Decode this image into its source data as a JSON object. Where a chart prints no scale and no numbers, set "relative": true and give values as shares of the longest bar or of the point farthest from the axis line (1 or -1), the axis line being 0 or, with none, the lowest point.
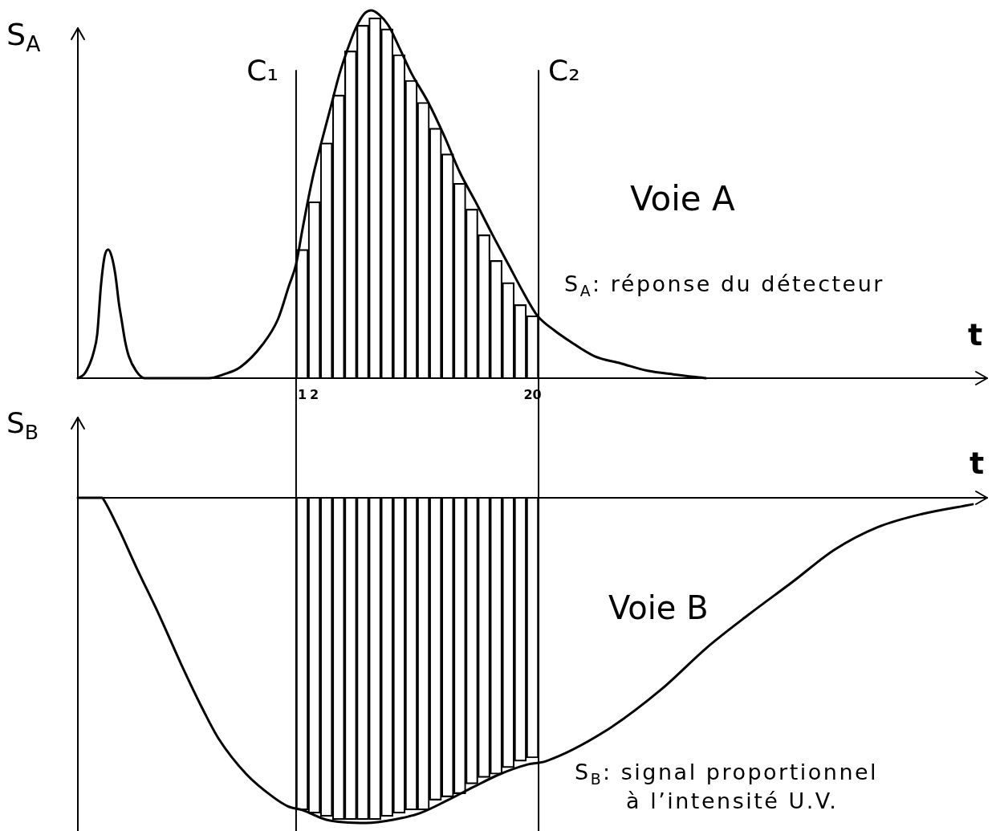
{
  "chart_data": [
    {
      "type": "line",
      "relative": true,
      "ylabel": "S$_{A}$",
      "xlabel": "t",
      "xlim": [
        -17.5,
        57.5
      ],
      "xticks": [
        1,
        2,
        20
      ],
      "tick_labels": "x",
      "line_style": "solid",
      "ref_lines": [
        {
          "axis": "x",
          "value": 0.5,
          "label": "C₁"
        },
        {
          "axis": "x",
          "value": 20.5,
          "label": "C₂"
        }
      ],
      "annotations": [
        "Voie A",
        "S$_{A}$: réponse du détecteur"
      ],
      "series": [
        {
          "color": "#000000",
          "x": [
            -17.5,
            -17.0,
            -16.5,
            -16.2,
            -15.9,
            -15.6,
            -15.3,
            -15.0,
            -14.7,
            -14.4,
            -14.1,
            -13.9,
            -13.6,
            -13.3,
            -12.7,
            -12.0,
            -6.7,
            -5.5,
            -4.1,
            -2.3,
            -1.0,
            -0.1,
            0.5,
            1.0,
            1.4,
            1.9,
            2.5,
            3.3,
            4.1,
            4.7,
            5.4,
            6.1,
            6.7,
            7.3,
            8.1,
            9.0,
            10.0,
            11.4,
            12.7,
            14.0,
            15.3,
            16.7,
            18.0,
            19.3,
            20.4,
            21.8,
            23.1,
            25.1,
            27.3,
            29.5,
            31.7,
            34.3
          ],
          "values": [
            0,
            0.01,
            0.04,
            0.07,
            0.12,
            0.25,
            0.33,
            0.35,
            0.33,
            0.28,
            0.2,
            0.16,
            0.1,
            0.06,
            0.02,
            0,
            0,
            0.01,
            0.03,
            0.09,
            0.16,
            0.25,
            0.31,
            0.4,
            0.47,
            0.55,
            0.63,
            0.73,
            0.83,
            0.89,
            0.95,
            0.99,
            1,
            0.99,
            0.96,
            0.9,
            0.83,
            0.75,
            0.66,
            0.56,
            0.48,
            0.39,
            0.31,
            0.23,
            0.17,
            0.13,
            0.1,
            0.06,
            0.04,
            0.02,
            0.01,
            0
          ]
        },
        {
          "type": "bar",
          "color": "#000000",
          "x": [
            1,
            2,
            3,
            4,
            5,
            6,
            7,
            8,
            9,
            10,
            11,
            12,
            13,
            14,
            15,
            16,
            17,
            18,
            19,
            20
          ],
          "values": [
            0.35,
            0.48,
            0.64,
            0.77,
            0.89,
            0.96,
            0.98,
            0.95,
            0.88,
            0.81,
            0.75,
            0.68,
            0.61,
            0.53,
            0.46,
            0.39,
            0.32,
            0.26,
            0.2,
            0.17
          ]
        }
      ]
    },
    {
      "type": "line",
      "relative": true,
      "ylabel": "S$_{B}$",
      "xlabel": "t",
      "xlim": [
        -17.5,
        57.5
      ],
      "tick_labels": false,
      "line_style": "solid",
      "ref_lines": [
        {
          "axis": "x",
          "value": 0.5
        },
        {
          "axis": "x",
          "value": 20.5
        }
      ],
      "annotations": [
        "Voie B",
        "S$_{B}$: signal proportionnel",
        "à l’intensité U.V."
      ],
      "series": [
        {
          "color": "#000000",
          "x": [
            -17.5,
            -15.5,
            -15.3,
            -14.2,
            -12.6,
            -10.8,
            -9.0,
            -7.2,
            -5.9,
            -3.6,
            -1.4,
            -0.1,
            1.0,
            3.0,
            6.3,
            8.5,
            10.7,
            13.0,
            15.1,
            17.3,
            19.6,
            21.1,
            25.9,
            30.6,
            34.4,
            37.8,
            41.4,
            44.9,
            48.5,
            52.1,
            56.3
          ],
          "values": [
            0,
            0,
            -0.01,
            -0.09,
            -0.22,
            -0.36,
            -0.51,
            -0.65,
            -0.74,
            -0.85,
            -0.92,
            -0.95,
            -0.96,
            -0.99,
            -1,
            -0.99,
            -0.97,
            -0.93,
            -0.89,
            -0.85,
            -0.82,
            -0.81,
            -0.72,
            -0.59,
            -0.46,
            -0.36,
            -0.26,
            -0.16,
            -0.09,
            -0.05,
            -0.02
          ]
        },
        {
          "type": "bar",
          "color": "#000000",
          "x": [
            1,
            2,
            3,
            4,
            5,
            6,
            7,
            8,
            9,
            10,
            11,
            12,
            13,
            14,
            15,
            16,
            17,
            18,
            19,
            20
          ],
          "values": [
            -0.96,
            -0.97,
            -0.98,
            -0.99,
            -0.99,
            -0.99,
            -0.99,
            -0.98,
            -0.97,
            -0.96,
            -0.96,
            -0.93,
            -0.92,
            -0.91,
            -0.88,
            -0.86,
            -0.85,
            -0.83,
            -0.81,
            -0.8
          ]
        }
      ]
    }
  ]
}
